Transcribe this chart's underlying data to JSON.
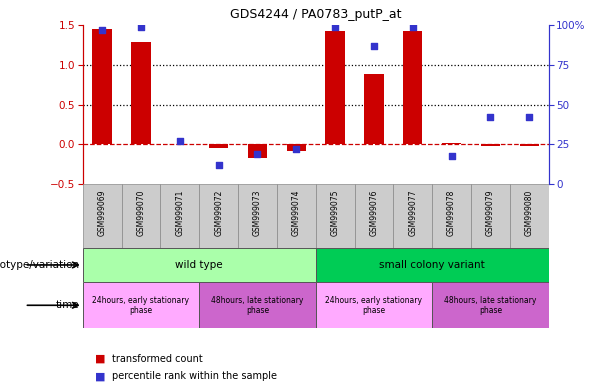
{
  "title": "GDS4244 / PA0783_putP_at",
  "samples": [
    "GSM999069",
    "GSM999070",
    "GSM999071",
    "GSM999072",
    "GSM999073",
    "GSM999074",
    "GSM999075",
    "GSM999076",
    "GSM999077",
    "GSM999078",
    "GSM999079",
    "GSM999080"
  ],
  "bar_values": [
    1.45,
    1.28,
    0.0,
    -0.05,
    -0.17,
    -0.08,
    1.42,
    0.88,
    1.43,
    0.02,
    -0.02,
    -0.02
  ],
  "dot_values_pct": [
    97,
    99,
    27,
    12,
    19,
    22,
    99,
    87,
    99,
    18,
    42,
    42
  ],
  "bar_color": "#cc0000",
  "dot_color": "#3333cc",
  "ylim_left": [
    -0.5,
    1.5
  ],
  "ylim_right": [
    0,
    100
  ],
  "yticks_left": [
    -0.5,
    0.0,
    0.5,
    1.0,
    1.5
  ],
  "yticks_right": [
    0,
    25,
    50,
    75,
    100
  ],
  "hlines": [
    0.5,
    1.0
  ],
  "zero_line_color": "#cc0000",
  "hline_color": "#000000",
  "genotype_groups": [
    {
      "label": "wild type",
      "start": 0,
      "end": 6,
      "color": "#aaffaa"
    },
    {
      "label": "small colony variant",
      "start": 6,
      "end": 12,
      "color": "#00cc55"
    }
  ],
  "time_groups": [
    {
      "label": "24hours, early stationary\nphase",
      "start": 0,
      "end": 3,
      "color": "#ffaaff"
    },
    {
      "label": "48hours, late stationary\nphase",
      "start": 3,
      "end": 6,
      "color": "#cc66cc"
    },
    {
      "label": "24hours, early stationary\nphase",
      "start": 6,
      "end": 9,
      "color": "#ffaaff"
    },
    {
      "label": "48hours, late stationary\nphase",
      "start": 9,
      "end": 12,
      "color": "#cc66cc"
    }
  ],
  "genotype_label": "genotype/variation",
  "time_label": "time",
  "legend_items": [
    {
      "color": "#cc0000",
      "label": "transformed count"
    },
    {
      "color": "#3333cc",
      "label": "percentile rank within the sample"
    }
  ],
  "tick_color_right": "#3333cc",
  "tick_color_left": "#cc0000",
  "bar_width": 0.5,
  "sample_box_color": "#cccccc"
}
